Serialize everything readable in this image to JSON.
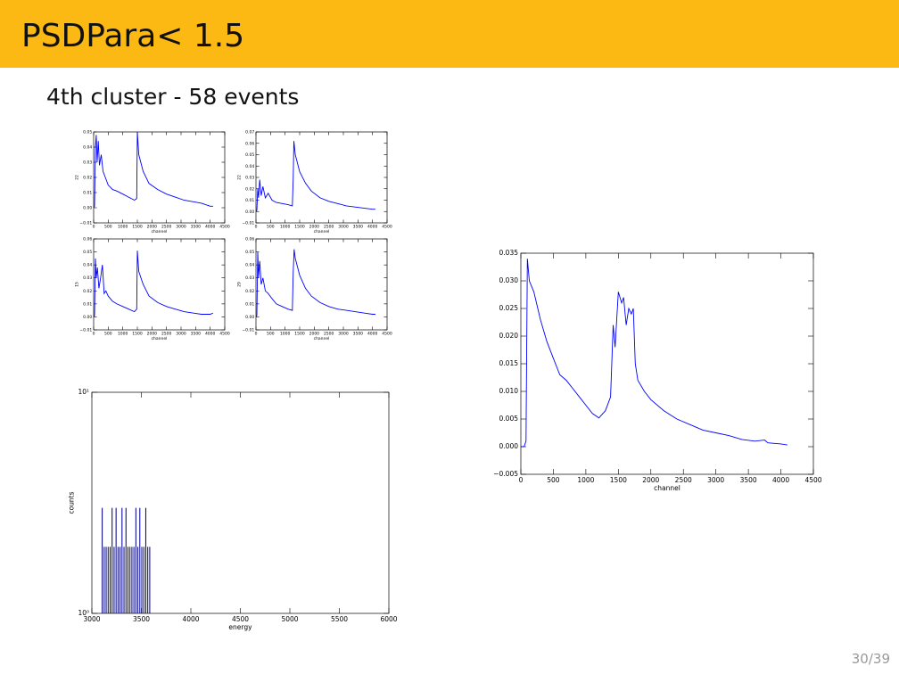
{
  "slide": {
    "title": "PSDPara< 1.5",
    "subtitle": "4th cluster - 58 events",
    "page": "30/39"
  },
  "chart_data": [
    {
      "type": "line",
      "ylabel": "22",
      "xlabel": "channel",
      "color": "#0000ff",
      "x": [
        0,
        30,
        60,
        90,
        120,
        160,
        200,
        260,
        320,
        400,
        500,
        650,
        800,
        1000,
        1200,
        1400,
        1480,
        1500,
        1550,
        1700,
        1900,
        2200,
        2500,
        2800,
        3100,
        3400,
        3700,
        4000,
        4100
      ],
      "values": [
        0.0,
        0.001,
        0.04,
        0.048,
        0.03,
        0.044,
        0.028,
        0.035,
        0.024,
        0.02,
        0.015,
        0.012,
        0.011,
        0.009,
        0.007,
        0.005,
        0.006,
        0.05,
        0.035,
        0.024,
        0.016,
        0.012,
        0.009,
        0.007,
        0.005,
        0.004,
        0.003,
        0.001,
        0.001
      ],
      "xlim": [
        0,
        4500
      ],
      "xticks": [
        0,
        500,
        1000,
        1500,
        2000,
        2500,
        3000,
        3500,
        4000,
        4500
      ],
      "ylim": [
        -0.01,
        0.05
      ],
      "yticks": [
        {
          "value": -0.01,
          "label": "−0.01"
        },
        {
          "value": 0,
          "label": "0.00"
        },
        {
          "value": 0.01,
          "label": "0.01"
        },
        {
          "value": 0.02,
          "label": "0.02"
        },
        {
          "value": 0.03,
          "label": "0.03"
        },
        {
          "value": 0.04,
          "label": "0.04"
        },
        {
          "value": 0.05,
          "label": "0.05"
        }
      ]
    },
    {
      "type": "line",
      "ylabel": "22",
      "xlabel": "channel",
      "color": "#0000ff",
      "x": [
        0,
        30,
        60,
        90,
        130,
        180,
        240,
        320,
        420,
        550,
        700,
        900,
        1100,
        1250,
        1280,
        1300,
        1350,
        1500,
        1700,
        1900,
        2200,
        2500,
        2800,
        3100,
        3400,
        3700,
        4000,
        4100
      ],
      "values": [
        0.0,
        0.001,
        0.02,
        0.012,
        0.028,
        0.014,
        0.022,
        0.012,
        0.016,
        0.01,
        0.008,
        0.007,
        0.006,
        0.005,
        0.03,
        0.062,
        0.05,
        0.035,
        0.025,
        0.018,
        0.012,
        0.009,
        0.007,
        0.005,
        0.004,
        0.003,
        0.002,
        0.002
      ],
      "xlim": [
        0,
        4500
      ],
      "xticks": [
        0,
        500,
        1000,
        1500,
        2000,
        2500,
        3000,
        3500,
        4000,
        4500
      ],
      "ylim": [
        -0.01,
        0.07
      ],
      "yticks": [
        {
          "value": -0.01,
          "label": "−0.01"
        },
        {
          "value": 0,
          "label": "0.00"
        },
        {
          "value": 0.01,
          "label": "0.01"
        },
        {
          "value": 0.02,
          "label": "0.02"
        },
        {
          "value": 0.03,
          "label": "0.03"
        },
        {
          "value": 0.04,
          "label": "0.04"
        },
        {
          "value": 0.05,
          "label": "0.05"
        },
        {
          "value": 0.06,
          "label": "0.06"
        },
        {
          "value": 0.07,
          "label": "0.07"
        }
      ]
    },
    {
      "type": "line",
      "ylabel": "15",
      "xlabel": "channel",
      "color": "#0000ff",
      "x": [
        0,
        30,
        60,
        90,
        130,
        180,
        240,
        300,
        360,
        420,
        500,
        650,
        800,
        1000,
        1200,
        1400,
        1480,
        1500,
        1550,
        1700,
        1900,
        2200,
        2500,
        2800,
        3100,
        3400,
        3700,
        4000,
        4100
      ],
      "values": [
        0.0,
        0.001,
        0.045,
        0.03,
        0.038,
        0.022,
        0.03,
        0.04,
        0.018,
        0.02,
        0.016,
        0.012,
        0.01,
        0.008,
        0.006,
        0.004,
        0.006,
        0.051,
        0.035,
        0.025,
        0.016,
        0.011,
        0.008,
        0.006,
        0.004,
        0.003,
        0.002,
        0.002,
        0.003
      ],
      "xlim": [
        0,
        4500
      ],
      "xticks": [
        0,
        500,
        1000,
        1500,
        2000,
        2500,
        3000,
        3500,
        4000,
        4500
      ],
      "ylim": [
        -0.01,
        0.06
      ],
      "yticks": [
        {
          "value": -0.01,
          "label": "−0.01"
        },
        {
          "value": 0,
          "label": "0.00"
        },
        {
          "value": 0.01,
          "label": "0.01"
        },
        {
          "value": 0.02,
          "label": "0.02"
        },
        {
          "value": 0.03,
          "label": "0.03"
        },
        {
          "value": 0.04,
          "label": "0.04"
        },
        {
          "value": 0.05,
          "label": "0.05"
        },
        {
          "value": 0.06,
          "label": "0.06"
        }
      ]
    },
    {
      "type": "line",
      "ylabel": "29",
      "xlabel": "channel",
      "color": "#0000ff",
      "x": [
        0,
        30,
        60,
        90,
        130,
        180,
        240,
        320,
        420,
        550,
        700,
        900,
        1100,
        1250,
        1280,
        1310,
        1350,
        1500,
        1700,
        1900,
        2200,
        2500,
        2800,
        3100,
        3400,
        3700,
        4000,
        4100
      ],
      "values": [
        0.0,
        0.001,
        0.05,
        0.03,
        0.043,
        0.025,
        0.03,
        0.02,
        0.018,
        0.014,
        0.01,
        0.008,
        0.006,
        0.005,
        0.035,
        0.052,
        0.045,
        0.032,
        0.022,
        0.016,
        0.011,
        0.008,
        0.006,
        0.005,
        0.004,
        0.003,
        0.002,
        0.002
      ],
      "xlim": [
        0,
        4500
      ],
      "xticks": [
        0,
        500,
        1000,
        1500,
        2000,
        2500,
        3000,
        3500,
        4000,
        4500
      ],
      "ylim": [
        -0.01,
        0.06
      ],
      "yticks": [
        {
          "value": -0.01,
          "label": "−0.01"
        },
        {
          "value": 0,
          "label": "0.00"
        },
        {
          "value": 0.01,
          "label": "0.01"
        },
        {
          "value": 0.02,
          "label": "0.02"
        },
        {
          "value": 0.03,
          "label": "0.03"
        },
        {
          "value": 0.04,
          "label": "0.04"
        },
        {
          "value": 0.05,
          "label": "0.05"
        },
        {
          "value": 0.06,
          "label": "0.06"
        }
      ]
    },
    {
      "type": "histogram",
      "xlabel": "energy",
      "ylabel": "counts",
      "color": "#00008b",
      "log_y": true,
      "bins": [
        3100,
        3120,
        3140,
        3160,
        3180,
        3200,
        3220,
        3240,
        3260,
        3280,
        3300,
        3320,
        3340,
        3360,
        3380,
        3400,
        3420,
        3440,
        3460,
        3480,
        3500,
        3520,
        3540,
        3560,
        3580,
        3600
      ],
      "counts": [
        3,
        2,
        2,
        2,
        2,
        3,
        2,
        3,
        2,
        2,
        3,
        2,
        3,
        2,
        2,
        2,
        2,
        3,
        2,
        3,
        2,
        2,
        3,
        2,
        2
      ],
      "xlim": [
        3000,
        6000
      ],
      "xticks": [
        3000,
        3500,
        4000,
        4500,
        5000,
        5500,
        6000
      ],
      "ylim": [
        1,
        10
      ],
      "yticks": [
        {
          "value": 1,
          "label": "10⁰"
        },
        {
          "value": 10,
          "label": "10¹"
        }
      ]
    },
    {
      "type": "line",
      "xlabel": "channel",
      "color": "#0000ff",
      "x": [
        0,
        50,
        80,
        100,
        130,
        200,
        300,
        400,
        500,
        600,
        700,
        800,
        900,
        1000,
        1100,
        1200,
        1300,
        1380,
        1420,
        1450,
        1500,
        1550,
        1580,
        1620,
        1660,
        1700,
        1730,
        1760,
        1800,
        1900,
        2000,
        2200,
        2400,
        2600,
        2800,
        3000,
        3200,
        3400,
        3600,
        3750,
        3800,
        4000,
        4100
      ],
      "values": [
        0.0,
        0.0,
        0.001,
        0.034,
        0.03,
        0.028,
        0.023,
        0.019,
        0.016,
        0.013,
        0.012,
        0.0105,
        0.009,
        0.0075,
        0.006,
        0.0052,
        0.0065,
        0.009,
        0.022,
        0.018,
        0.028,
        0.026,
        0.027,
        0.022,
        0.025,
        0.024,
        0.025,
        0.015,
        0.012,
        0.01,
        0.0085,
        0.0065,
        0.005,
        0.004,
        0.003,
        0.0025,
        0.002,
        0.0013,
        0.001,
        0.0012,
        0.0007,
        0.0005,
        0.0003
      ],
      "xlim": [
        0,
        4500
      ],
      "xticks": [
        0,
        500,
        1000,
        1500,
        2000,
        2500,
        3000,
        3500,
        4000,
        4500
      ],
      "ylim": [
        -0.005,
        0.035
      ],
      "yticks": [
        {
          "value": -0.005,
          "label": "−0.005"
        },
        {
          "value": 0,
          "label": "0.000"
        },
        {
          "value": 0.005,
          "label": "0.005"
        },
        {
          "value": 0.01,
          "label": "0.010"
        },
        {
          "value": 0.015,
          "label": "0.015"
        },
        {
          "value": 0.02,
          "label": "0.020"
        },
        {
          "value": 0.025,
          "label": "0.025"
        },
        {
          "value": 0.03,
          "label": "0.030"
        },
        {
          "value": 0.035,
          "label": "0.035"
        }
      ]
    }
  ]
}
